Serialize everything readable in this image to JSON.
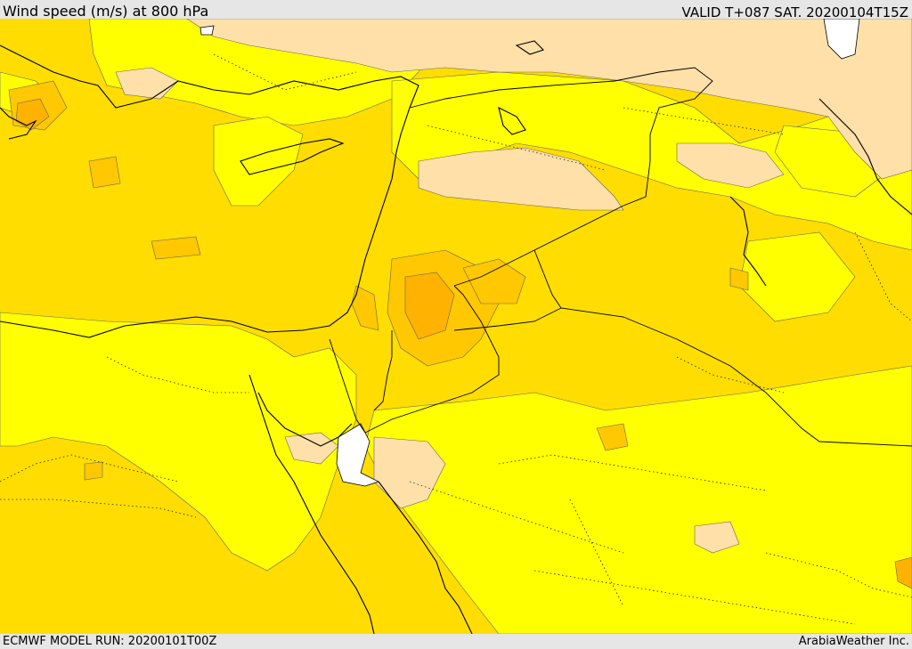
{
  "header": {
    "title": "Wind speed (m/s) at 800 hPa",
    "valid_time": "VALID T+087 SAT. 20200104T15Z"
  },
  "footer": {
    "model_run": "ECMWF MODEL RUN: 20200101T00Z",
    "credit": "ArabiaWeather Inc."
  },
  "map": {
    "variable": "wind speed",
    "level_hpa": 800,
    "region": "Eastern Mediterranean and Middle East",
    "colors": {
      "calm_light": "#ffe0a8",
      "low": "#ffff00",
      "moderate": "#ffdd00",
      "high": "#ffc800",
      "highest": "#ffb300",
      "water_gap": "#ffffff",
      "coastline": "#000000",
      "contour": "#555555"
    }
  }
}
